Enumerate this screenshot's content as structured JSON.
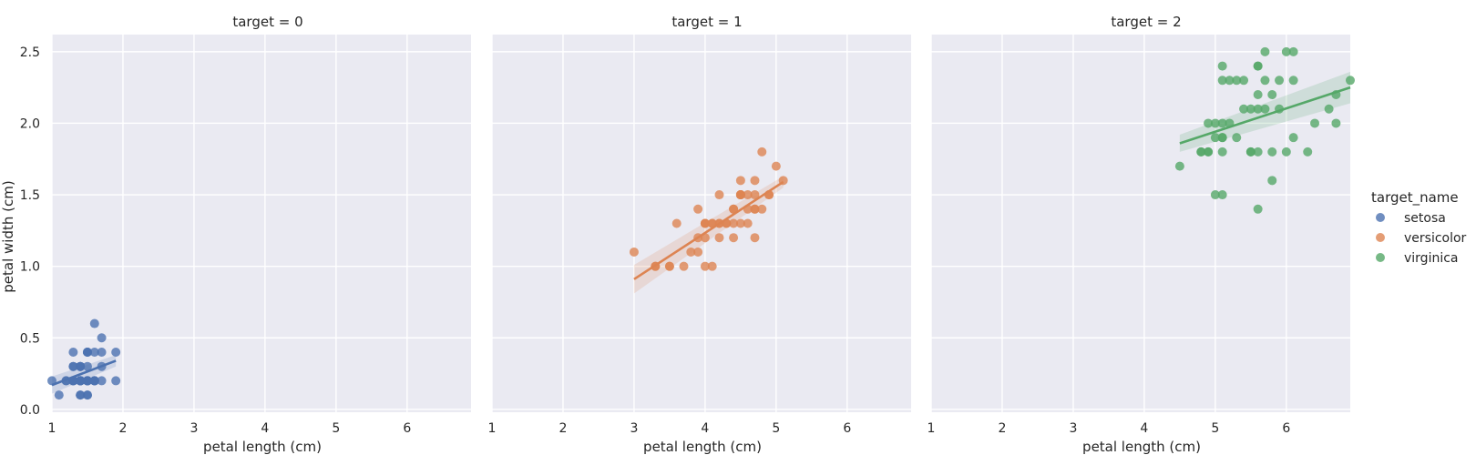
{
  "chart_data": {
    "type": "scatter",
    "facets": [
      {
        "title": "target = 0",
        "series": "setosa",
        "color": "#4c72b0",
        "points": [
          [
            1.4,
            0.2
          ],
          [
            1.4,
            0.2
          ],
          [
            1.3,
            0.2
          ],
          [
            1.5,
            0.2
          ],
          [
            1.4,
            0.2
          ],
          [
            1.7,
            0.4
          ],
          [
            1.4,
            0.3
          ],
          [
            1.5,
            0.2
          ],
          [
            1.4,
            0.2
          ],
          [
            1.5,
            0.1
          ],
          [
            1.5,
            0.2
          ],
          [
            1.6,
            0.2
          ],
          [
            1.4,
            0.1
          ],
          [
            1.1,
            0.1
          ],
          [
            1.2,
            0.2
          ],
          [
            1.5,
            0.4
          ],
          [
            1.3,
            0.4
          ],
          [
            1.4,
            0.3
          ],
          [
            1.7,
            0.3
          ],
          [
            1.5,
            0.3
          ],
          [
            1.7,
            0.2
          ],
          [
            1.5,
            0.4
          ],
          [
            1.0,
            0.2
          ],
          [
            1.7,
            0.5
          ],
          [
            1.9,
            0.2
          ],
          [
            1.6,
            0.2
          ],
          [
            1.6,
            0.4
          ],
          [
            1.5,
            0.2
          ],
          [
            1.4,
            0.2
          ],
          [
            1.6,
            0.2
          ],
          [
            1.6,
            0.2
          ],
          [
            1.5,
            0.4
          ],
          [
            1.5,
            0.1
          ],
          [
            1.4,
            0.2
          ],
          [
            1.5,
            0.2
          ],
          [
            1.2,
            0.2
          ],
          [
            1.3,
            0.2
          ],
          [
            1.4,
            0.1
          ],
          [
            1.3,
            0.2
          ],
          [
            1.5,
            0.2
          ],
          [
            1.3,
            0.3
          ],
          [
            1.3,
            0.3
          ],
          [
            1.3,
            0.2
          ],
          [
            1.6,
            0.6
          ],
          [
            1.9,
            0.4
          ],
          [
            1.4,
            0.3
          ],
          [
            1.6,
            0.2
          ],
          [
            1.4,
            0.2
          ],
          [
            1.5,
            0.2
          ],
          [
            1.4,
            0.2
          ]
        ],
        "fit": {
          "x": [
            1.0,
            1.9
          ],
          "y": [
            0.17,
            0.34
          ]
        }
      },
      {
        "title": "target = 1",
        "series": "versicolor",
        "color": "#dd8452",
        "points": [
          [
            4.7,
            1.4
          ],
          [
            4.5,
            1.5
          ],
          [
            4.9,
            1.5
          ],
          [
            4.0,
            1.3
          ],
          [
            4.6,
            1.5
          ],
          [
            4.5,
            1.3
          ],
          [
            4.7,
            1.6
          ],
          [
            3.3,
            1.0
          ],
          [
            4.6,
            1.3
          ],
          [
            3.9,
            1.4
          ],
          [
            3.5,
            1.0
          ],
          [
            4.2,
            1.5
          ],
          [
            4.0,
            1.0
          ],
          [
            4.7,
            1.4
          ],
          [
            3.6,
            1.3
          ],
          [
            4.4,
            1.4
          ],
          [
            4.5,
            1.5
          ],
          [
            4.1,
            1.0
          ],
          [
            4.5,
            1.5
          ],
          [
            3.9,
            1.1
          ],
          [
            4.8,
            1.8
          ],
          [
            4.0,
            1.3
          ],
          [
            4.9,
            1.5
          ],
          [
            4.7,
            1.2
          ],
          [
            4.3,
            1.3
          ],
          [
            4.4,
            1.4
          ],
          [
            4.8,
            1.4
          ],
          [
            5.0,
            1.7
          ],
          [
            4.5,
            1.5
          ],
          [
            3.5,
            1.0
          ],
          [
            3.8,
            1.1
          ],
          [
            3.7,
            1.0
          ],
          [
            3.9,
            1.2
          ],
          [
            5.1,
            1.6
          ],
          [
            4.5,
            1.5
          ],
          [
            4.5,
            1.6
          ],
          [
            4.7,
            1.5
          ],
          [
            4.4,
            1.3
          ],
          [
            4.1,
            1.3
          ],
          [
            4.0,
            1.3
          ],
          [
            4.4,
            1.2
          ],
          [
            4.6,
            1.4
          ],
          [
            4.0,
            1.2
          ],
          [
            3.3,
            1.0
          ],
          [
            4.2,
            1.3
          ],
          [
            4.2,
            1.2
          ],
          [
            4.2,
            1.3
          ],
          [
            4.3,
            1.3
          ],
          [
            3.0,
            1.1
          ],
          [
            4.1,
            1.3
          ]
        ],
        "fit": {
          "x": [
            3.0,
            5.1
          ],
          "y": [
            0.91,
            1.59
          ]
        }
      },
      {
        "title": "target = 2",
        "series": "virginica",
        "color": "#55a868",
        "points": [
          [
            6.0,
            2.5
          ],
          [
            5.1,
            1.9
          ],
          [
            5.9,
            2.1
          ],
          [
            5.6,
            1.8
          ],
          [
            5.8,
            2.2
          ],
          [
            6.6,
            2.1
          ],
          [
            4.5,
            1.7
          ],
          [
            6.3,
            1.8
          ],
          [
            5.8,
            1.8
          ],
          [
            6.1,
            2.5
          ],
          [
            5.1,
            2.0
          ],
          [
            5.3,
            1.9
          ],
          [
            5.5,
            2.1
          ],
          [
            5.0,
            2.0
          ],
          [
            5.1,
            2.4
          ],
          [
            5.3,
            2.3
          ],
          [
            5.5,
            1.8
          ],
          [
            6.7,
            2.2
          ],
          [
            6.9,
            2.3
          ],
          [
            5.0,
            1.5
          ],
          [
            5.7,
            2.3
          ],
          [
            4.9,
            2.0
          ],
          [
            6.7,
            2.0
          ],
          [
            4.9,
            1.8
          ],
          [
            5.7,
            2.1
          ],
          [
            6.0,
            1.8
          ],
          [
            4.8,
            1.8
          ],
          [
            4.9,
            1.8
          ],
          [
            5.6,
            2.1
          ],
          [
            5.8,
            1.6
          ],
          [
            6.1,
            1.9
          ],
          [
            6.4,
            2.0
          ],
          [
            5.6,
            2.2
          ],
          [
            5.1,
            1.5
          ],
          [
            5.6,
            1.4
          ],
          [
            6.1,
            2.3
          ],
          [
            5.6,
            2.4
          ],
          [
            5.5,
            1.8
          ],
          [
            4.8,
            1.8
          ],
          [
            5.4,
            2.1
          ],
          [
            5.6,
            2.4
          ],
          [
            5.1,
            2.3
          ],
          [
            5.1,
            1.9
          ],
          [
            5.9,
            2.3
          ],
          [
            5.7,
            2.5
          ],
          [
            5.2,
            2.3
          ],
          [
            5.0,
            1.9
          ],
          [
            5.2,
            2.0
          ],
          [
            5.4,
            2.3
          ],
          [
            5.1,
            1.8
          ]
        ],
        "fit": {
          "x": [
            4.5,
            6.9
          ],
          "y": [
            1.86,
            2.25
          ]
        }
      }
    ],
    "xlabel": "petal length (cm)",
    "ylabel": "petal width (cm)",
    "xticks": [
      1,
      2,
      3,
      4,
      5,
      6
    ],
    "yticks": [
      "0.0",
      "0.5",
      "1.0",
      "1.5",
      "2.0",
      "2.5"
    ],
    "xlim": [
      1.0,
      6.9
    ],
    "ylim": [
      -0.02,
      2.62
    ],
    "grid": true,
    "legend": {
      "title": "target_name",
      "placement": "right",
      "entries": [
        {
          "label": "setosa",
          "color": "#4c72b0"
        },
        {
          "label": "versicolor",
          "color": "#dd8452"
        },
        {
          "label": "virginica",
          "color": "#55a868"
        }
      ]
    }
  }
}
